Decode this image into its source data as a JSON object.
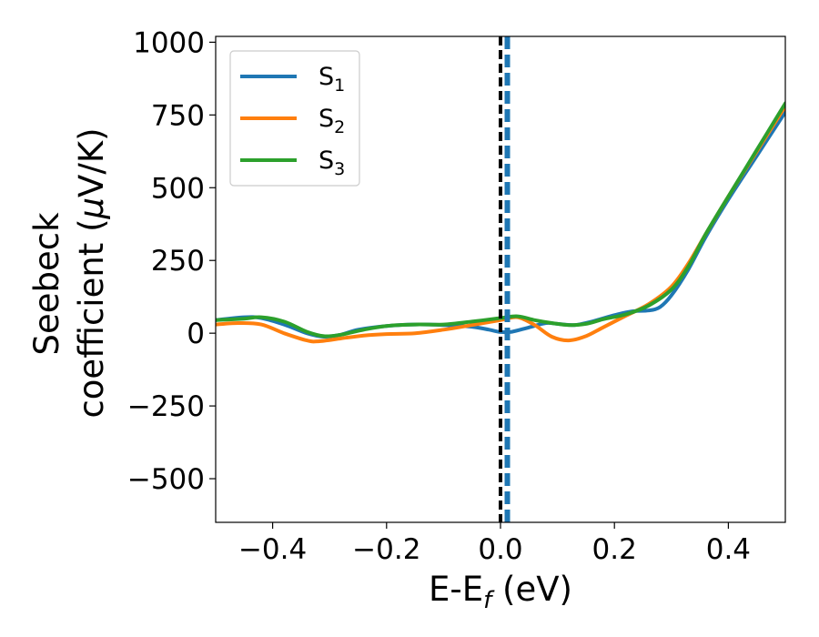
{
  "colors": {
    "S1": "#1f77b4",
    "S2": "#ff7f0e",
    "S3": "#2ca02c",
    "fermi_line": "#000000",
    "marker_line": "#1f77b4"
  },
  "chart_data": {
    "type": "line",
    "xlabel": {
      "main": "E-E",
      "sub": "f",
      "unit": " (eV)"
    },
    "ylabel": {
      "line1": "Seebeck",
      "line2": "coefficient  (",
      "mu": "μ",
      "unit": "V/K)"
    },
    "xlim": [
      -0.5,
      0.5
    ],
    "ylim": [
      -650,
      1020
    ],
    "xticks": [
      -0.4,
      -0.2,
      0.0,
      0.2,
      0.4
    ],
    "xtick_labels": [
      "−0.4",
      "−0.2",
      "0.0",
      "0.2",
      "0.4"
    ],
    "yticks": [
      1000,
      750,
      500,
      250,
      0,
      -250,
      -500
    ],
    "ytick_labels": [
      "1000",
      "750",
      "500",
      "250",
      "0",
      "−250",
      "−500"
    ],
    "grid": false,
    "legend_position": "top-left",
    "vlines": [
      {
        "x": 0.0,
        "style": "dashed",
        "color_key": "fermi_line"
      },
      {
        "x": 0.012,
        "style": "dashed",
        "color_key": "marker_line"
      }
    ],
    "series": [
      {
        "name": "S",
        "sub": "1",
        "color_key": "S1",
        "points": [
          [
            -0.5,
            45
          ],
          [
            -0.45,
            55
          ],
          [
            -0.42,
            52
          ],
          [
            -0.38,
            30
          ],
          [
            -0.34,
            0
          ],
          [
            -0.31,
            -12
          ],
          [
            -0.28,
            -5
          ],
          [
            -0.25,
            12
          ],
          [
            -0.2,
            25
          ],
          [
            -0.15,
            30
          ],
          [
            -0.1,
            28
          ],
          [
            -0.05,
            22
          ],
          [
            -0.02,
            12
          ],
          [
            0.0,
            4
          ],
          [
            0.02,
            5
          ],
          [
            0.05,
            20
          ],
          [
            0.08,
            35
          ],
          [
            0.1,
            32
          ],
          [
            0.13,
            28
          ],
          [
            0.16,
            40
          ],
          [
            0.2,
            62
          ],
          [
            0.23,
            75
          ],
          [
            0.26,
            78
          ],
          [
            0.28,
            90
          ],
          [
            0.3,
            130
          ],
          [
            0.33,
            220
          ],
          [
            0.36,
            330
          ],
          [
            0.4,
            460
          ],
          [
            0.45,
            610
          ],
          [
            0.5,
            760
          ]
        ]
      },
      {
        "name": "S",
        "sub": "2",
        "color_key": "S2",
        "points": [
          [
            -0.5,
            30
          ],
          [
            -0.46,
            35
          ],
          [
            -0.42,
            30
          ],
          [
            -0.38,
            0
          ],
          [
            -0.34,
            -25
          ],
          [
            -0.32,
            -28
          ],
          [
            -0.28,
            -18
          ],
          [
            -0.24,
            -8
          ],
          [
            -0.2,
            -3
          ],
          [
            -0.15,
            0
          ],
          [
            -0.1,
            12
          ],
          [
            -0.05,
            28
          ],
          [
            0.0,
            45
          ],
          [
            0.03,
            55
          ],
          [
            0.06,
            28
          ],
          [
            0.09,
            -12
          ],
          [
            0.12,
            -25
          ],
          [
            0.15,
            -10
          ],
          [
            0.18,
            20
          ],
          [
            0.22,
            60
          ],
          [
            0.26,
            100
          ],
          [
            0.3,
            160
          ],
          [
            0.33,
            240
          ],
          [
            0.36,
            340
          ],
          [
            0.4,
            470
          ],
          [
            0.45,
            625
          ],
          [
            0.5,
            780
          ]
        ]
      },
      {
        "name": "S",
        "sub": "3",
        "color_key": "S3",
        "points": [
          [
            -0.5,
            45
          ],
          [
            -0.45,
            50
          ],
          [
            -0.42,
            55
          ],
          [
            -0.38,
            40
          ],
          [
            -0.34,
            5
          ],
          [
            -0.31,
            -10
          ],
          [
            -0.28,
            -5
          ],
          [
            -0.24,
            12
          ],
          [
            -0.2,
            25
          ],
          [
            -0.15,
            30
          ],
          [
            -0.1,
            30
          ],
          [
            -0.05,
            40
          ],
          [
            0.0,
            52
          ],
          [
            0.03,
            58
          ],
          [
            0.06,
            45
          ],
          [
            0.09,
            35
          ],
          [
            0.12,
            28
          ],
          [
            0.15,
            32
          ],
          [
            0.18,
            48
          ],
          [
            0.22,
            65
          ],
          [
            0.26,
            95
          ],
          [
            0.3,
            150
          ],
          [
            0.33,
            230
          ],
          [
            0.36,
            340
          ],
          [
            0.4,
            470
          ],
          [
            0.45,
            630
          ],
          [
            0.5,
            790
          ]
        ]
      }
    ]
  }
}
